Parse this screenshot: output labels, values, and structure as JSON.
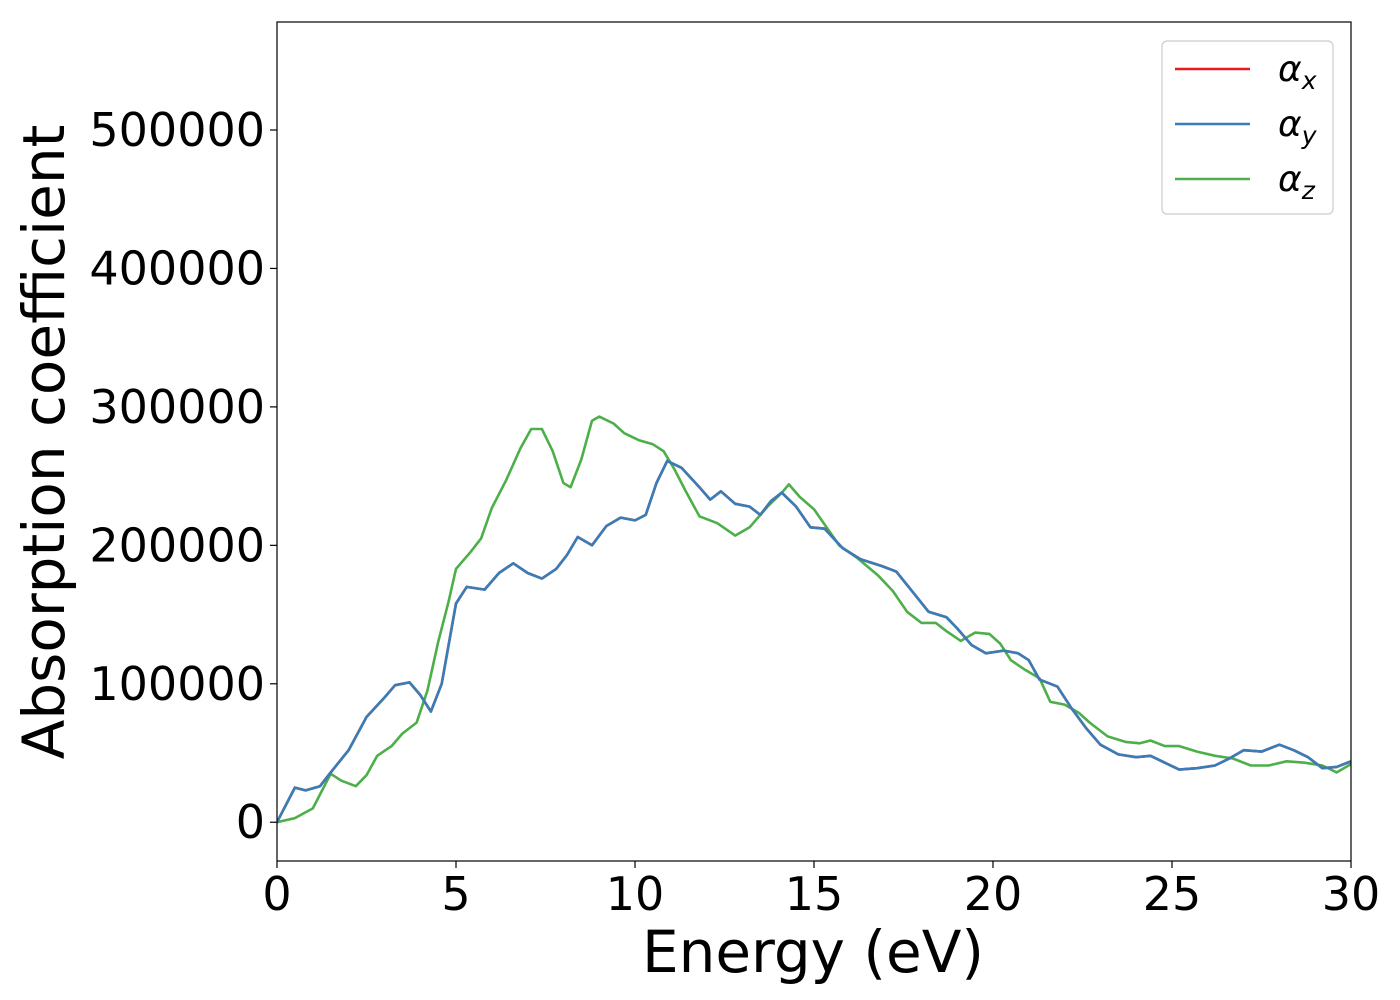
{
  "chart_data": {
    "type": "line",
    "title": "",
    "xlabel": "Energy (eV)",
    "ylabel": "Absorption coefficient",
    "xlim": [
      0,
      30
    ],
    "ylim": [
      -28000,
      578000
    ],
    "xticks": [
      0,
      5,
      10,
      15,
      20,
      25,
      30
    ],
    "yticks": [
      0,
      100000,
      200000,
      300000,
      400000,
      500000
    ],
    "grid": false,
    "legend": {
      "placement": "top-right"
    },
    "series": [
      {
        "name": "x",
        "color": "#e41a1c",
        "points": [
          [
            0,
            0
          ],
          [
            0.3,
            15000
          ],
          [
            0.5,
            25000
          ],
          [
            0.8,
            23000
          ],
          [
            1.2,
            26000
          ],
          [
            1.5,
            36000
          ],
          [
            2.0,
            52000
          ],
          [
            2.5,
            76000
          ],
          [
            3.0,
            90000
          ],
          [
            3.3,
            99000
          ],
          [
            3.7,
            101000
          ],
          [
            4.0,
            92000
          ],
          [
            4.3,
            80000
          ],
          [
            4.6,
            100000
          ],
          [
            5.0,
            158000
          ],
          [
            5.3,
            170000
          ],
          [
            5.8,
            168000
          ],
          [
            6.2,
            180000
          ],
          [
            6.6,
            187000
          ],
          [
            7.0,
            180000
          ],
          [
            7.4,
            176000
          ],
          [
            7.8,
            183000
          ],
          [
            8.1,
            193000
          ],
          [
            8.4,
            206000
          ],
          [
            8.8,
            200000
          ],
          [
            9.2,
            214000
          ],
          [
            9.6,
            220000
          ],
          [
            10.0,
            218000
          ],
          [
            10.3,
            222000
          ],
          [
            10.6,
            245000
          ],
          [
            10.9,
            261000
          ],
          [
            11.3,
            256000
          ],
          [
            11.8,
            242000
          ],
          [
            12.1,
            233000
          ],
          [
            12.4,
            239000
          ],
          [
            12.8,
            230000
          ],
          [
            13.2,
            228000
          ],
          [
            13.5,
            222000
          ],
          [
            13.8,
            232000
          ],
          [
            14.1,
            238000
          ],
          [
            14.5,
            228000
          ],
          [
            14.9,
            213000
          ],
          [
            15.3,
            212000
          ],
          [
            15.8,
            198000
          ],
          [
            16.3,
            190000
          ],
          [
            16.9,
            185000
          ],
          [
            17.3,
            181000
          ],
          [
            17.8,
            165000
          ],
          [
            18.2,
            152000
          ],
          [
            18.7,
            148000
          ],
          [
            19.0,
            140000
          ],
          [
            19.4,
            128000
          ],
          [
            19.8,
            122000
          ],
          [
            20.3,
            124000
          ],
          [
            20.7,
            122000
          ],
          [
            21.0,
            117000
          ],
          [
            21.3,
            103000
          ],
          [
            21.8,
            98000
          ],
          [
            22.2,
            82000
          ],
          [
            22.6,
            68000
          ],
          [
            23.0,
            56000
          ],
          [
            23.5,
            49000
          ],
          [
            24.0,
            47000
          ],
          [
            24.4,
            48000
          ],
          [
            24.8,
            43000
          ],
          [
            25.2,
            38000
          ],
          [
            25.7,
            39000
          ],
          [
            26.2,
            41000
          ],
          [
            26.6,
            46000
          ],
          [
            27.0,
            52000
          ],
          [
            27.5,
            51000
          ],
          [
            28.0,
            56000
          ],
          [
            28.4,
            52000
          ],
          [
            28.8,
            47000
          ],
          [
            29.2,
            39000
          ],
          [
            29.6,
            40000
          ],
          [
            30.0,
            44000
          ]
        ]
      },
      {
        "name": "y",
        "color": "#377eb8",
        "points": [
          [
            0,
            0
          ],
          [
            0.3,
            15000
          ],
          [
            0.5,
            25000
          ],
          [
            0.8,
            23000
          ],
          [
            1.2,
            26000
          ],
          [
            1.5,
            36000
          ],
          [
            2.0,
            52000
          ],
          [
            2.5,
            76000
          ],
          [
            3.0,
            90000
          ],
          [
            3.3,
            99000
          ],
          [
            3.7,
            101000
          ],
          [
            4.0,
            92000
          ],
          [
            4.3,
            80000
          ],
          [
            4.6,
            100000
          ],
          [
            5.0,
            158000
          ],
          [
            5.3,
            170000
          ],
          [
            5.8,
            168000
          ],
          [
            6.2,
            180000
          ],
          [
            6.6,
            187000
          ],
          [
            7.0,
            180000
          ],
          [
            7.4,
            176000
          ],
          [
            7.8,
            183000
          ],
          [
            8.1,
            193000
          ],
          [
            8.4,
            206000
          ],
          [
            8.8,
            200000
          ],
          [
            9.2,
            214000
          ],
          [
            9.6,
            220000
          ],
          [
            10.0,
            218000
          ],
          [
            10.3,
            222000
          ],
          [
            10.6,
            245000
          ],
          [
            10.9,
            261000
          ],
          [
            11.3,
            256000
          ],
          [
            11.8,
            242000
          ],
          [
            12.1,
            233000
          ],
          [
            12.4,
            239000
          ],
          [
            12.8,
            230000
          ],
          [
            13.2,
            228000
          ],
          [
            13.5,
            222000
          ],
          [
            13.8,
            232000
          ],
          [
            14.1,
            238000
          ],
          [
            14.5,
            228000
          ],
          [
            14.9,
            213000
          ],
          [
            15.3,
            212000
          ],
          [
            15.8,
            198000
          ],
          [
            16.3,
            190000
          ],
          [
            16.9,
            185000
          ],
          [
            17.3,
            181000
          ],
          [
            17.8,
            165000
          ],
          [
            18.2,
            152000
          ],
          [
            18.7,
            148000
          ],
          [
            19.0,
            140000
          ],
          [
            19.4,
            128000
          ],
          [
            19.8,
            122000
          ],
          [
            20.3,
            124000
          ],
          [
            20.7,
            122000
          ],
          [
            21.0,
            117000
          ],
          [
            21.3,
            103000
          ],
          [
            21.8,
            98000
          ],
          [
            22.2,
            82000
          ],
          [
            22.6,
            68000
          ],
          [
            23.0,
            56000
          ],
          [
            23.5,
            49000
          ],
          [
            24.0,
            47000
          ],
          [
            24.4,
            48000
          ],
          [
            24.8,
            43000
          ],
          [
            25.2,
            38000
          ],
          [
            25.7,
            39000
          ],
          [
            26.2,
            41000
          ],
          [
            26.6,
            46000
          ],
          [
            27.0,
            52000
          ],
          [
            27.5,
            51000
          ],
          [
            28.0,
            56000
          ],
          [
            28.4,
            52000
          ],
          [
            28.8,
            47000
          ],
          [
            29.2,
            39000
          ],
          [
            29.6,
            40000
          ],
          [
            30.0,
            44000
          ]
        ]
      },
      {
        "name": "z",
        "color": "#4daf4a",
        "points": [
          [
            0,
            0
          ],
          [
            0.5,
            3000
          ],
          [
            1.0,
            10000
          ],
          [
            1.2,
            20000
          ],
          [
            1.5,
            35000
          ],
          [
            1.8,
            30000
          ],
          [
            2.2,
            26000
          ],
          [
            2.5,
            34000
          ],
          [
            2.8,
            48000
          ],
          [
            3.2,
            55000
          ],
          [
            3.5,
            64000
          ],
          [
            3.9,
            72000
          ],
          [
            4.2,
            95000
          ],
          [
            4.5,
            130000
          ],
          [
            4.8,
            160000
          ],
          [
            5.0,
            183000
          ],
          [
            5.4,
            195000
          ],
          [
            5.7,
            205000
          ],
          [
            6.0,
            227000
          ],
          [
            6.4,
            247000
          ],
          [
            6.8,
            270000
          ],
          [
            7.1,
            284000
          ],
          [
            7.4,
            284000
          ],
          [
            7.7,
            268000
          ],
          [
            8.0,
            245000
          ],
          [
            8.2,
            242000
          ],
          [
            8.5,
            262000
          ],
          [
            8.8,
            290000
          ],
          [
            9.0,
            293000
          ],
          [
            9.4,
            288000
          ],
          [
            9.7,
            281000
          ],
          [
            10.1,
            276000
          ],
          [
            10.5,
            273000
          ],
          [
            10.8,
            268000
          ],
          [
            11.1,
            255000
          ],
          [
            11.4,
            240000
          ],
          [
            11.8,
            221000
          ],
          [
            12.3,
            216000
          ],
          [
            12.8,
            207000
          ],
          [
            13.2,
            213000
          ],
          [
            13.7,
            228000
          ],
          [
            14.1,
            238000
          ],
          [
            14.3,
            244000
          ],
          [
            14.6,
            235000
          ],
          [
            15.0,
            226000
          ],
          [
            15.3,
            215000
          ],
          [
            15.7,
            200000
          ],
          [
            16.2,
            191000
          ],
          [
            16.8,
            178000
          ],
          [
            17.2,
            167000
          ],
          [
            17.6,
            152000
          ],
          [
            18.0,
            144000
          ],
          [
            18.4,
            144000
          ],
          [
            18.7,
            138000
          ],
          [
            19.1,
            131000
          ],
          [
            19.5,
            137000
          ],
          [
            19.9,
            136000
          ],
          [
            20.2,
            129000
          ],
          [
            20.5,
            117000
          ],
          [
            20.9,
            110000
          ],
          [
            21.3,
            104000
          ],
          [
            21.6,
            87000
          ],
          [
            22.0,
            85000
          ],
          [
            22.4,
            79000
          ],
          [
            22.7,
            72000
          ],
          [
            23.2,
            62000
          ],
          [
            23.7,
            58000
          ],
          [
            24.1,
            57000
          ],
          [
            24.4,
            59000
          ],
          [
            24.8,
            55000
          ],
          [
            25.2,
            55000
          ],
          [
            25.7,
            51000
          ],
          [
            26.2,
            48000
          ],
          [
            26.7,
            46000
          ],
          [
            27.2,
            41000
          ],
          [
            27.7,
            41000
          ],
          [
            28.2,
            44000
          ],
          [
            28.7,
            43000
          ],
          [
            29.2,
            41000
          ],
          [
            29.6,
            36000
          ],
          [
            30.0,
            42000
          ]
        ]
      }
    ]
  }
}
